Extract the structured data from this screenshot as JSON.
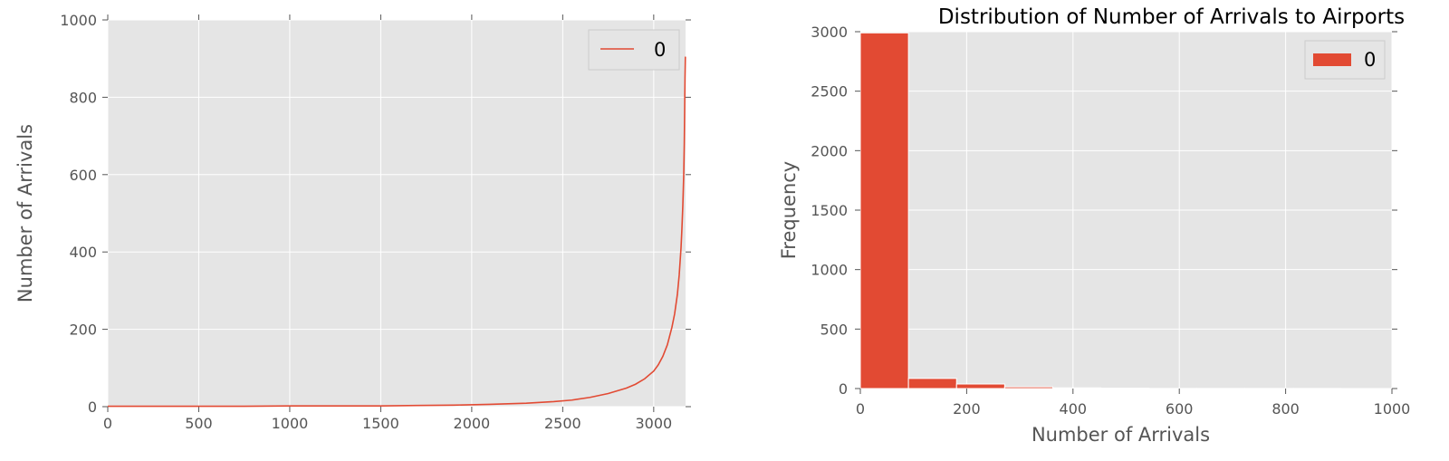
{
  "colors": {
    "plot_bg": "#e5e5e5",
    "grid": "#ffffff",
    "series": "#e24a33",
    "tick_text": "#555555",
    "legend_border": "#cccccc"
  },
  "chart_data": [
    {
      "type": "line",
      "title": "",
      "xlabel": "",
      "ylabel": "Number of Arrivals",
      "xlim": [
        0,
        3175
      ],
      "ylim": [
        0,
        1000
      ],
      "xticks": [
        "0",
        "500",
        "1000",
        "1500",
        "2000",
        "2500",
        "3000"
      ],
      "yticks": [
        "0",
        "200",
        "400",
        "600",
        "800",
        "1000"
      ],
      "grid": true,
      "legend": {
        "position": "top-right",
        "entries": [
          "0"
        ]
      },
      "series": [
        {
          "name": "0",
          "x": [
            0,
            250,
            500,
            750,
            1000,
            1250,
            1500,
            1700,
            1900,
            2100,
            2300,
            2450,
            2550,
            2650,
            2750,
            2850,
            2900,
            2950,
            3000,
            3025,
            3050,
            3075,
            3100,
            3115,
            3130,
            3140,
            3150,
            3155,
            3160,
            3165,
            3168,
            3170,
            3172,
            3174
          ],
          "y": [
            1,
            1,
            1,
            1,
            2,
            2,
            2,
            3,
            4,
            6,
            9,
            13,
            17,
            24,
            34,
            48,
            58,
            72,
            92,
            108,
            130,
            160,
            205,
            240,
            290,
            340,
            410,
            460,
            520,
            600,
            680,
            760,
            850,
            905
          ]
        }
      ]
    },
    {
      "type": "bar",
      "title": "Distribution of Number of Arrivals to Airports",
      "xlabel": "Number of Arrivals",
      "ylabel": "Frequency",
      "xlim": [
        0,
        1000
      ],
      "ylim": [
        0,
        3000
      ],
      "xticks": [
        "0",
        "200",
        "400",
        "600",
        "800",
        "1000"
      ],
      "yticks": [
        "0",
        "500",
        "1000",
        "1500",
        "2000",
        "2500",
        "3000"
      ],
      "grid": true,
      "legend": {
        "position": "top-right",
        "entries": [
          "0"
        ]
      },
      "bins": [
        {
          "start": 0,
          "end": 90.5,
          "value": 2990
        },
        {
          "start": 90.5,
          "end": 181,
          "value": 85
        },
        {
          "start": 181,
          "end": 271.5,
          "value": 38
        },
        {
          "start": 271.5,
          "end": 362,
          "value": 14
        },
        {
          "start": 362,
          "end": 452.5,
          "value": 6
        },
        {
          "start": 452.5,
          "end": 543,
          "value": 3
        },
        {
          "start": 543,
          "end": 633.5,
          "value": 1
        },
        {
          "start": 633.5,
          "end": 724,
          "value": 1
        },
        {
          "start": 724,
          "end": 814.5,
          "value": 1
        },
        {
          "start": 814.5,
          "end": 905,
          "value": 1
        }
      ],
      "series_name": "0"
    }
  ]
}
